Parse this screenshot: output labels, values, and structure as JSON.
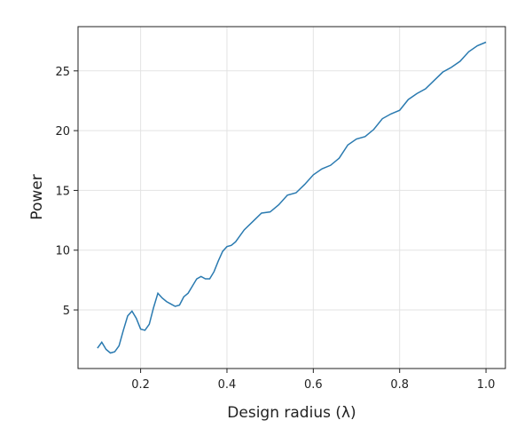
{
  "chart_data": {
    "type": "line",
    "x_label": "Design radius (λ)",
    "y_label": "Power",
    "x": [
      0.1,
      0.11,
      0.12,
      0.13,
      0.14,
      0.15,
      0.16,
      0.17,
      0.18,
      0.19,
      0.2,
      0.21,
      0.22,
      0.23,
      0.24,
      0.25,
      0.26,
      0.27,
      0.28,
      0.29,
      0.3,
      0.31,
      0.32,
      0.33,
      0.34,
      0.35,
      0.36,
      0.37,
      0.38,
      0.39,
      0.4,
      0.41,
      0.42,
      0.43,
      0.44,
      0.46,
      0.48,
      0.5,
      0.52,
      0.54,
      0.56,
      0.58,
      0.6,
      0.62,
      0.64,
      0.66,
      0.68,
      0.7,
      0.72,
      0.74,
      0.76,
      0.78,
      0.8,
      0.82,
      0.84,
      0.86,
      0.88,
      0.9,
      0.92,
      0.94,
      0.96,
      0.98,
      1.0
    ],
    "series": [
      {
        "color": "#2a7ab0",
        "values": [
          1.8,
          2.3,
          1.7,
          1.4,
          1.5,
          2.0,
          3.3,
          4.5,
          4.9,
          4.3,
          3.4,
          3.3,
          3.8,
          5.2,
          6.4,
          6.0,
          5.7,
          5.5,
          5.3,
          5.4,
          6.1,
          6.4,
          7.0,
          7.6,
          7.8,
          7.6,
          7.6,
          8.2,
          9.1,
          9.9,
          10.3,
          10.4,
          10.7,
          11.2,
          11.7,
          12.4,
          13.1,
          13.2,
          13.8,
          14.6,
          14.8,
          15.5,
          16.3,
          16.8,
          17.1,
          17.7,
          18.8,
          19.3,
          19.5,
          20.1,
          21.0,
          21.4,
          21.7,
          22.6,
          23.1,
          23.5,
          24.2,
          24.9,
          25.3,
          25.8,
          26.6,
          27.1,
          27.4
        ]
      }
    ],
    "xlim": [
      0.055,
      1.045
    ],
    "ylim": [
      0.1,
      28.7
    ],
    "xticks": [
      0.2,
      0.4,
      0.6,
      0.8,
      {
        "value": 1,
        "label": "1.0"
      }
    ],
    "yticks": [
      5,
      10,
      15,
      20,
      25
    ],
    "grid": true
  }
}
